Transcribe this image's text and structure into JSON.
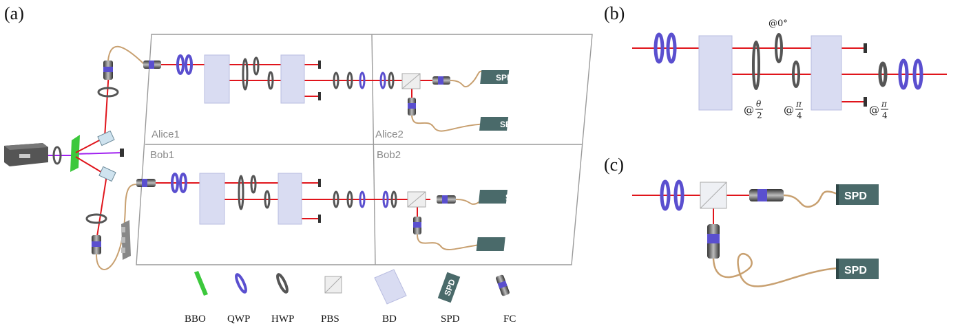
{
  "panels": {
    "a": "(a)",
    "b": "(b)",
    "c": "(c)"
  },
  "regions": {
    "alice1": "Alice1",
    "alice2": "Alice2",
    "bob1": "Bob1",
    "bob2": "Bob2"
  },
  "spd_text": "SPD",
  "legend": {
    "bbo": "BBO",
    "qwp": "QWP",
    "hwp": "HWP",
    "pbs": "PBS",
    "bd": "BD",
    "spd": "SPD",
    "fc": "FC"
  },
  "angles_b": {
    "at_zero": "@0°",
    "at_theta_half_prefix": "@",
    "theta": "θ",
    "two": "2",
    "at_pi_quarter_prefix": "@",
    "pi": "π",
    "four": "4"
  },
  "colors": {
    "beam": "#e0141b",
    "pump": "#a020f0",
    "fiber": "#c8a070",
    "frame": "#9a9a9a",
    "bd_fill": "#d9dcf2",
    "qwp": "#5a4fcf",
    "spd_box": "#4a6a6a",
    "bbo": "#3cc83c",
    "laser": "#555555"
  }
}
